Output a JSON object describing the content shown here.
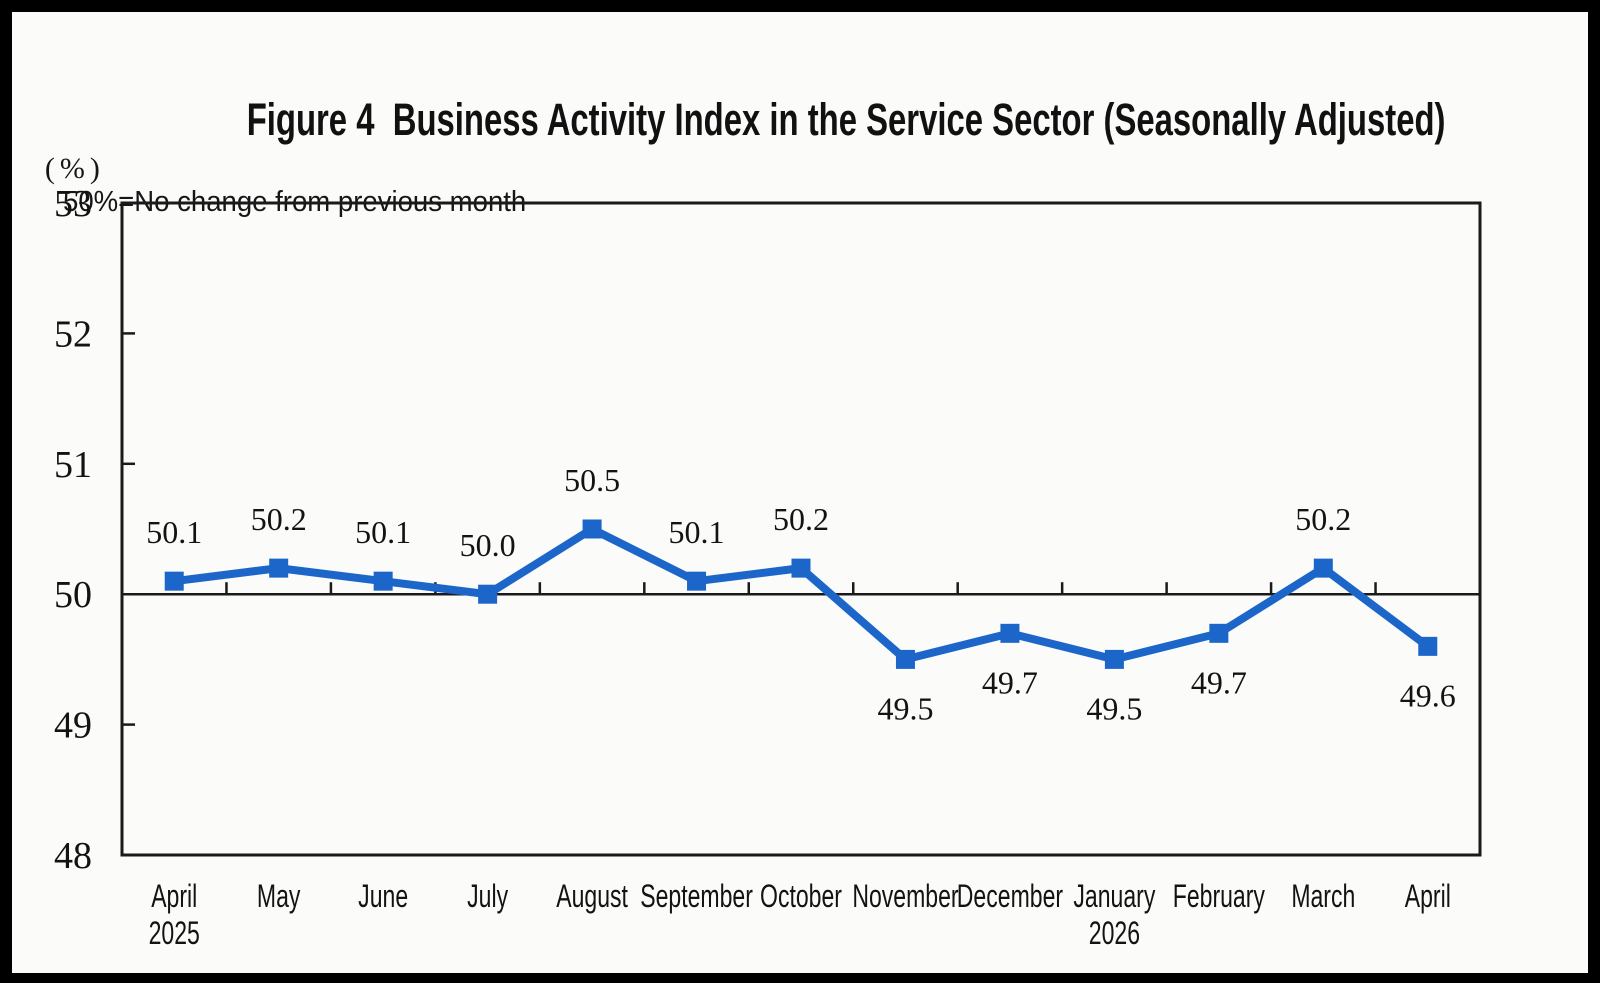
{
  "figure": {
    "title": "Figure 4  Business Activity Index in the Service Sector (Seasonally Adjusted)",
    "unit_label": "(%)",
    "note": "50%=No change from previous month"
  },
  "chart_data": {
    "type": "line",
    "title": "Figure 4  Business Activity Index in the Service Sector (Seasonally Adjusted)",
    "subtitle": "50%=No change from previous month",
    "ylabel": "(%)",
    "ylim": [
      48,
      53
    ],
    "y_ticks": [
      48,
      49,
      50,
      51,
      52,
      53
    ],
    "reference_line": 50,
    "grid": false,
    "legend": "none",
    "marker": "square",
    "series_color": "#1C66C9",
    "text_color": "#131313",
    "axis_color": "#1a1a1a",
    "categories": [
      "April",
      "May",
      "June",
      "July",
      "August",
      "September",
      "October",
      "November",
      "December",
      "January",
      "February",
      "March",
      "April"
    ],
    "year_rows": [
      {
        "index": 0,
        "text": "2025"
      },
      {
        "index": 9,
        "text": "2026"
      }
    ],
    "series": [
      {
        "values": [
          50.1,
          50.2,
          50.1,
          50.0,
          50.5,
          50.1,
          50.2,
          49.5,
          49.7,
          49.5,
          49.7,
          50.2,
          49.6
        ],
        "labels": [
          "50.1",
          "50.2",
          "50.1",
          "50.0",
          "50.5",
          "50.1",
          "50.2",
          "49.5",
          "49.7",
          "49.5",
          "49.7",
          "50.2",
          "49.6"
        ]
      }
    ]
  }
}
